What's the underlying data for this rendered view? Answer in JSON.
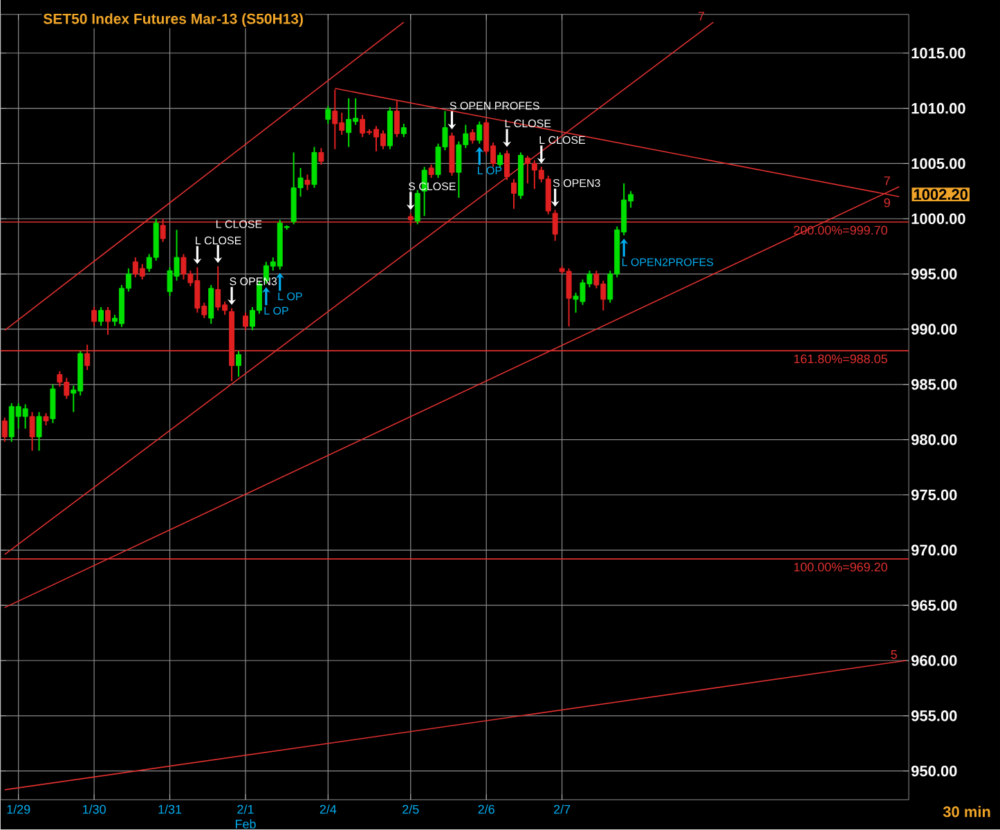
{
  "chart_data": {
    "type": "candlestick",
    "title": "SET50  Index  Futures  Mar-13  (S50H13)",
    "categories": [
      null,
      null,
      "1/29",
      null,
      null,
      null,
      null,
      null,
      null,
      null,
      null,
      null,
      null,
      "1/30",
      null,
      null,
      null,
      null,
      null,
      null,
      null,
      null,
      null,
      null,
      "1/31",
      null,
      null,
      null,
      null,
      null,
      null,
      null,
      null,
      null,
      null,
      "2/1",
      null,
      null,
      null,
      null,
      null,
      null,
      null,
      null,
      null,
      null,
      null,
      "2/4",
      null,
      null,
      null,
      null,
      null,
      null,
      null,
      null,
      null,
      null,
      null,
      "2/5",
      null,
      null,
      null,
      null,
      null,
      null,
      null,
      null,
      null,
      null,
      "2/6",
      null,
      null,
      null,
      null,
      null,
      null,
      null,
      null,
      null,
      null,
      "2/7",
      null,
      null,
      null,
      null,
      null,
      null,
      null,
      null,
      null,
      null,
      null,
      null,
      null,
      null,
      null,
      null,
      null,
      null,
      null,
      null,
      null,
      null,
      null,
      null,
      null,
      null,
      null,
      null,
      null,
      null,
      null,
      null,
      null,
      null,
      null,
      null,
      null,
      null,
      null,
      null,
      null,
      null,
      null,
      null,
      null,
      null,
      null,
      null,
      null,
      null
    ],
    "ohlc": [
      [
        981.7,
        982,
        979.8,
        980.25
      ],
      [
        980.25,
        983.3,
        979.8,
        983
      ],
      [
        982.1,
        983.3,
        981,
        983
      ],
      [
        982.1,
        983.2,
        981,
        982.8
      ],
      [
        982.1,
        982.5,
        979,
        980.25
      ],
      [
        980.25,
        982.5,
        979,
        982.1
      ],
      [
        982.1,
        982.4,
        981.3,
        981.7
      ],
      [
        981.9,
        985,
        981.5,
        984.6
      ],
      [
        985.9,
        986.2,
        984.8,
        985.2
      ],
      [
        985.2,
        985.6,
        983.7,
        984
      ],
      [
        984.2,
        984.9,
        982.5,
        984.5
      ],
      [
        984.4,
        988,
        984,
        987.8
      ],
      [
        987.8,
        988.6,
        986.3,
        986.7
      ],
      [
        991.7,
        992,
        990.3,
        990.7
      ],
      [
        990.7,
        992,
        990.3,
        991.7
      ],
      [
        991.7,
        992,
        989.5,
        990.7
      ],
      [
        990.7,
        991.3,
        990.3,
        991
      ],
      [
        990.5,
        994,
        990.2,
        993.7
      ],
      [
        993.7,
        995.5,
        993.4,
        995
      ],
      [
        996.1,
        996.5,
        994.7,
        995
      ],
      [
        995.5,
        995.9,
        994.5,
        994.8
      ],
      [
        995.5,
        996.8,
        995.2,
        996.5
      ],
      [
        996.5,
        1000,
        996.2,
        999.6
      ],
      [
        999.4,
        1000,
        997.9,
        998.2
      ],
      [
        993.4,
        995.6,
        993,
        995.3
      ],
      [
        994.8,
        999,
        994.4,
        996.5
      ],
      [
        996.5,
        996.8,
        994.5,
        995
      ],
      [
        995,
        995.3,
        993.9,
        994.2
      ],
      [
        994.4,
        995.6,
        991.5,
        991.9
      ],
      [
        992.1,
        992.4,
        991,
        991.3
      ],
      [
        991,
        994,
        990.5,
        993.7
      ],
      [
        993.6,
        995.7,
        991.7,
        992
      ],
      [
        992.2,
        992.5,
        991.3,
        991.7
      ],
      [
        991.6,
        991.9,
        985.3,
        986.7
      ],
      [
        986.7,
        988,
        985.7,
        987.7
      ],
      [
        991.2,
        991.5,
        989.9,
        990.25
      ],
      [
        990.25,
        992,
        989.9,
        991.7
      ],
      [
        991.7,
        994.4,
        991.4,
        994.1
      ],
      [
        994.4,
        996.1,
        994.1,
        995.75
      ],
      [
        995.7,
        996.5,
        995.3,
        996.1
      ],
      [
        995.7,
        999.9,
        995.4,
        999.6
      ],
      [
        999.2,
        999.4,
        999,
        999.3
      ],
      [
        999.75,
        1006,
        999.5,
        1002.8
      ],
      [
        1002.8,
        1004.6,
        1002,
        1003.7
      ],
      [
        1003.5,
        1004,
        1002.6,
        1003.1
      ],
      [
        1003.1,
        1006.5,
        1002.8,
        1006
      ],
      [
        1006,
        1006.4,
        1004.9,
        1005.2
      ],
      [
        1009,
        1010.2,
        1008.6,
        1009.9
      ],
      [
        1009.75,
        1011.7,
        1006.3,
        1008.6
      ],
      [
        1008.7,
        1009.6,
        1007.6,
        1008
      ],
      [
        1007.8,
        1010.9,
        1006.5,
        1009
      ],
      [
        1008.8,
        1010.9,
        1008.5,
        1009.1
      ],
      [
        1009,
        1009.4,
        1007.4,
        1007.75
      ],
      [
        1007.9,
        1008.1,
        1007.6,
        1007.8
      ],
      [
        1008.1,
        1008.4,
        1006.1,
        1007.4
      ],
      [
        1007.7,
        1008,
        1006.3,
        1006.6
      ],
      [
        1006.6,
        1010.1,
        1006.3,
        1009.75
      ],
      [
        1009.75,
        1010.7,
        1007.4,
        1007.7
      ],
      [
        1007.7,
        1008.6,
        1007.4,
        1008.25
      ],
      [
        1000.2,
        1000.5,
        999.4,
        999.9
      ],
      [
        999.8,
        1002.6,
        999.5,
        1002.3
      ],
      [
        1002.5,
        1004.7,
        1000.25,
        1004.4
      ],
      [
        1004.6,
        1004.9,
        1003.7,
        1004
      ],
      [
        1004,
        1006.8,
        1003.7,
        1006.5
      ],
      [
        1006.5,
        1009.75,
        1006.2,
        1008.25
      ],
      [
        1007.5,
        1007.8,
        1003.9,
        1004.2
      ],
      [
        1004.2,
        1007,
        1001.9,
        1006.7
      ],
      [
        1006.7,
        1008.5,
        1006.4,
        1007.7
      ],
      [
        1007.8,
        1008.1,
        1006.8,
        1007.1
      ],
      [
        1007.1,
        1008.8,
        1006.8,
        1008.5
      ],
      [
        1008.7,
        1009,
        1005.8,
        1006.1
      ],
      [
        1006.6,
        1006.9,
        1004.7,
        1005
      ],
      [
        1004.9,
        1006,
        1004.6,
        1005.75
      ],
      [
        1005.9,
        1006.2,
        1003.5,
        1003.8
      ],
      [
        1003.25,
        1003.6,
        1000.9,
        1002.3
      ],
      [
        1002.1,
        1006,
        1001.8,
        1005.75
      ],
      [
        1005.5,
        1005.7,
        1003.2,
        1005
      ],
      [
        1005,
        1005.3,
        1002.7,
        1004.4
      ],
      [
        1004.4,
        1004.7,
        1003.3,
        1003.6
      ],
      [
        1003.6,
        1003.9,
        1000.4,
        1000.7
      ],
      [
        1000.5,
        1000.8,
        998,
        998.6
      ],
      [
        995.5,
        995.7,
        995,
        995.2
      ],
      [
        995.25,
        995.5,
        990.25,
        992.8
      ],
      [
        992.7,
        993.3,
        991.5,
        993
      ],
      [
        992.5,
        994.5,
        992.2,
        994.2
      ],
      [
        994.1,
        995.3,
        993.8,
        995
      ],
      [
        995,
        995.3,
        993.7,
        994
      ],
      [
        994.1,
        994.4,
        991.7,
        992.7
      ],
      [
        992.7,
        995.3,
        992.4,
        995
      ],
      [
        995,
        999.3,
        994.7,
        999
      ],
      [
        998.8,
        1003.2,
        998.5,
        1001.7
      ],
      [
        1001.6,
        1002.5,
        1001,
        1002.2
      ],
      null,
      null,
      null,
      null,
      null,
      null,
      null,
      null,
      null,
      null,
      null,
      null,
      null,
      null,
      null,
      null,
      null,
      null,
      null,
      null,
      null,
      null,
      null,
      null,
      null,
      null,
      null,
      null,
      null,
      null,
      null,
      null,
      null,
      null,
      null,
      null,
      null,
      null,
      null,
      null
    ],
    "colors": [
      "#e02020",
      "#00e000",
      "#00e000",
      "#00e000",
      "#e02020",
      "#00e000",
      "#e02020",
      "#00e000",
      "#e02020",
      "#e02020",
      "#00e000",
      "#00e000",
      "#e02020",
      "#e02020",
      "#00e000",
      "#e02020",
      "#00e000",
      "#00e000",
      "#00e000",
      "#e02020",
      "#e02020",
      "#00e000",
      "#00e000",
      "#e02020",
      "#00e000",
      "#00e000",
      "#e02020",
      "#e02020",
      "#e02020",
      "#e02020",
      "#00e000",
      "#e02020",
      "#e02020",
      "#e02020",
      "#00e000",
      "#e02020",
      "#00e000",
      "#00e000",
      "#00e000",
      "#00e000",
      "#00e000",
      "#00e000",
      "#00e000",
      "#00e000",
      "#e02020",
      "#00e000",
      "#e02020",
      "#00e000",
      "#e02020",
      "#e02020",
      "#00e000",
      "#00e000",
      "#e02020",
      "#e02020",
      "#e02020",
      "#e02020",
      "#00e000",
      "#e02020",
      "#00e000",
      "#e02020",
      "#00e000",
      "#00e000",
      "#e02020",
      "#00e000",
      "#00e000",
      "#e02020",
      "#00e000",
      "#00e000",
      "#e02020",
      "#00e000",
      "#e02020",
      "#e02020",
      "#00e000",
      "#e02020",
      "#e02020",
      "#00e000",
      "#e02020",
      "#e02020",
      "#e02020",
      "#e02020",
      "#e02020",
      "#e02020",
      "#e02020",
      "#00e000",
      "#00e000",
      "#00e000",
      "#e02020",
      "#e02020",
      "#00e000",
      "#00e000",
      "#00e000",
      "#00e000",
      null,
      null,
      null,
      null,
      null,
      null,
      null,
      null,
      null,
      null,
      null,
      null,
      null,
      null,
      null,
      null,
      null,
      null,
      null,
      null,
      null,
      null,
      null,
      null,
      null,
      null,
      null,
      null,
      null,
      null,
      null,
      null,
      null,
      null,
      null,
      null,
      null,
      null,
      null,
      null
    ],
    "series": [
      {
        "type": "line",
        "color": "#e03030",
        "values": [
          989.9,
          null,
          null,
          null,
          null,
          null,
          null,
          null,
          null,
          null,
          null,
          null,
          null,
          null,
          null,
          null,
          null,
          null,
          null,
          null,
          null,
          null,
          null,
          null,
          null,
          null,
          null,
          null,
          null,
          null,
          null,
          null,
          null,
          null,
          null,
          null,
          null,
          null,
          null,
          null,
          null,
          null,
          null,
          null,
          null,
          null,
          null,
          null,
          null,
          null,
          null,
          null,
          null,
          null,
          null,
          null,
          null,
          null,
          1017.8,
          null,
          null,
          null,
          null,
          null,
          null,
          null,
          null,
          null,
          null,
          null,
          null,
          null,
          null,
          null,
          null,
          null,
          null,
          null,
          null,
          null,
          null,
          null,
          null,
          null,
          null,
          null,
          null,
          null,
          null,
          null,
          null,
          null,
          null,
          null,
          null,
          null,
          null,
          null,
          null,
          null,
          null,
          null,
          null,
          null,
          null,
          null,
          null,
          null,
          null,
          null,
          null,
          null,
          null,
          null,
          null,
          null,
          null,
          null,
          null,
          null,
          null,
          null,
          null,
          null,
          null,
          null,
          null,
          null,
          null,
          null,
          null,
          null
        ]
      },
      {
        "type": "line",
        "name": "7",
        "color": "#e03030",
        "values": [
          969.6,
          null,
          null,
          null,
          null,
          null,
          null,
          null,
          null,
          null,
          null,
          null,
          null,
          null,
          null,
          null,
          null,
          null,
          null,
          null,
          null,
          null,
          null,
          null,
          null,
          null,
          null,
          null,
          null,
          null,
          null,
          null,
          null,
          null,
          null,
          null,
          null,
          null,
          null,
          null,
          null,
          null,
          null,
          null,
          null,
          null,
          null,
          null,
          null,
          null,
          null,
          null,
          null,
          null,
          null,
          null,
          null,
          null,
          null,
          null,
          null,
          null,
          null,
          null,
          null,
          null,
          null,
          null,
          null,
          null,
          null,
          null,
          null,
          null,
          null,
          null,
          null,
          null,
          null,
          null,
          null,
          null,
          null,
          null,
          null,
          null,
          null,
          null,
          null,
          null,
          null,
          null,
          null,
          null,
          null,
          null,
          null,
          null,
          null,
          null,
          null,
          null,
          null,
          1017.8,
          null,
          null,
          null,
          null,
          null,
          null,
          null,
          null,
          null,
          null,
          null,
          null,
          null,
          null,
          null,
          null,
          null,
          null,
          null,
          null,
          null,
          null,
          null,
          null,
          null,
          null,
          null,
          null
        ]
      },
      {
        "type": "line",
        "name": "7",
        "color": "#e03030",
        "values": [
          964.8,
          null,
          null,
          null,
          null,
          null,
          null,
          null,
          null,
          null,
          null,
          null,
          null,
          null,
          null,
          null,
          null,
          null,
          null,
          null,
          null,
          null,
          null,
          null,
          null,
          null,
          null,
          null,
          null,
          null,
          null,
          null,
          null,
          null,
          null,
          null,
          null,
          null,
          null,
          null,
          null,
          null,
          null,
          null,
          null,
          null,
          null,
          null,
          null,
          null,
          null,
          null,
          null,
          null,
          null,
          null,
          null,
          null,
          null,
          null,
          null,
          null,
          null,
          null,
          null,
          null,
          null,
          null,
          null,
          null,
          null,
          null,
          null,
          null,
          null,
          null,
          null,
          null,
          null,
          null,
          null,
          null,
          null,
          null,
          null,
          null,
          null,
          null,
          null,
          null,
          null,
          null,
          null,
          null,
          null,
          null,
          null,
          null,
          null,
          null,
          null,
          null,
          null,
          null,
          null,
          null,
          null,
          null,
          null,
          null,
          null,
          null,
          null,
          null,
          null,
          null,
          null,
          null,
          null,
          null,
          null,
          null,
          null,
          null,
          null,
          null,
          null,
          null,
          null,
          null,
          1002.9,
          null
        ]
      },
      {
        "type": "line",
        "name": "9",
        "color": "#e03030",
        "values": [
          null,
          null,
          null,
          null,
          null,
          null,
          null,
          null,
          null,
          null,
          null,
          null,
          null,
          null,
          null,
          null,
          null,
          null,
          null,
          null,
          null,
          null,
          null,
          null,
          null,
          null,
          null,
          null,
          null,
          null,
          null,
          null,
          null,
          null,
          null,
          null,
          null,
          null,
          null,
          null,
          null,
          null,
          null,
          null,
          null,
          null,
          null,
          null,
          1011.8,
          null,
          null,
          null,
          null,
          null,
          null,
          null,
          null,
          null,
          null,
          null,
          null,
          null,
          null,
          null,
          null,
          null,
          null,
          null,
          null,
          null,
          null,
          null,
          null,
          null,
          null,
          null,
          null,
          null,
          null,
          null,
          null,
          null,
          null,
          null,
          null,
          null,
          null,
          null,
          null,
          null,
          null,
          null,
          null,
          null,
          null,
          null,
          null,
          null,
          null,
          null,
          null,
          null,
          null,
          null,
          null,
          null,
          null,
          null,
          null,
          null,
          null,
          null,
          null,
          null,
          null,
          null,
          null,
          null,
          null,
          null,
          null,
          null,
          null,
          null,
          null,
          null,
          null,
          null,
          null,
          null,
          1002,
          null
        ]
      },
      {
        "type": "line",
        "name": "5",
        "color": "#e03030",
        "values": [
          948.3,
          null,
          null,
          null,
          null,
          null,
          null,
          null,
          null,
          null,
          null,
          null,
          null,
          null,
          null,
          null,
          null,
          null,
          null,
          null,
          null,
          null,
          null,
          null,
          null,
          null,
          null,
          null,
          null,
          null,
          null,
          null,
          null,
          null,
          null,
          null,
          null,
          null,
          null,
          null,
          null,
          null,
          null,
          null,
          null,
          null,
          null,
          null,
          null,
          null,
          null,
          null,
          null,
          null,
          null,
          null,
          null,
          null,
          null,
          null,
          null,
          null,
          null,
          null,
          null,
          null,
          null,
          null,
          null,
          null,
          null,
          null,
          null,
          null,
          null,
          null,
          null,
          null,
          null,
          null,
          null,
          null,
          null,
          null,
          null,
          null,
          null,
          null,
          null,
          null,
          null,
          null,
          null,
          null,
          null,
          null,
          null,
          null,
          null,
          null,
          null,
          null,
          null,
          null,
          null,
          null,
          null,
          null,
          null,
          null,
          null,
          null,
          null,
          null,
          null,
          null,
          null,
          null,
          null,
          null,
          null,
          null,
          null,
          null,
          null,
          null,
          null,
          null,
          null,
          null,
          null,
          960
        ]
      }
    ],
    "ylim": [
      947.4,
      1018.5
    ],
    "yticks": [
      {
        "value": 950,
        "label": "950.00"
      },
      {
        "value": 955,
        "label": "955.00"
      },
      {
        "value": 960,
        "label": "960.00"
      },
      {
        "value": 965,
        "label": "965.00"
      },
      {
        "value": 970,
        "label": "970.00"
      },
      {
        "value": 975,
        "label": "975.00"
      },
      {
        "value": 980,
        "label": "980.00"
      },
      {
        "value": 985,
        "label": "985.00"
      },
      {
        "value": 990,
        "label": "990.00"
      },
      {
        "value": 995,
        "label": "995.00"
      },
      {
        "value": 1000,
        "label": "1000.00"
      },
      {
        "value": 1005,
        "label": "1005.00"
      },
      {
        "value": 1010,
        "label": "1010.00"
      },
      {
        "value": 1015,
        "label": "1015.00"
      }
    ],
    "grid": true,
    "ref_lines": [
      {
        "axis": "y",
        "value": 999.7,
        "label": "200.00%=999.70",
        "color": "#e03030"
      },
      {
        "axis": "y",
        "value": 988.05,
        "label": "161.80%=988.05",
        "color": "#e03030"
      },
      {
        "axis": "y",
        "value": 969.2,
        "label": "100.00%=969.20",
        "color": "#e03030"
      }
    ],
    "annotations": [
      "L CLOSE",
      "L CLOSE",
      "S OPEN3",
      "L OP",
      "L OP",
      "S CLOSE",
      "S OPEN PROFES",
      "L OP",
      "L CLOSE",
      "L CLOSE",
      "S OPEN3",
      "L OPEN2PROFES",
      "1002.20",
      "Feb",
      "30  min"
    ]
  }
}
